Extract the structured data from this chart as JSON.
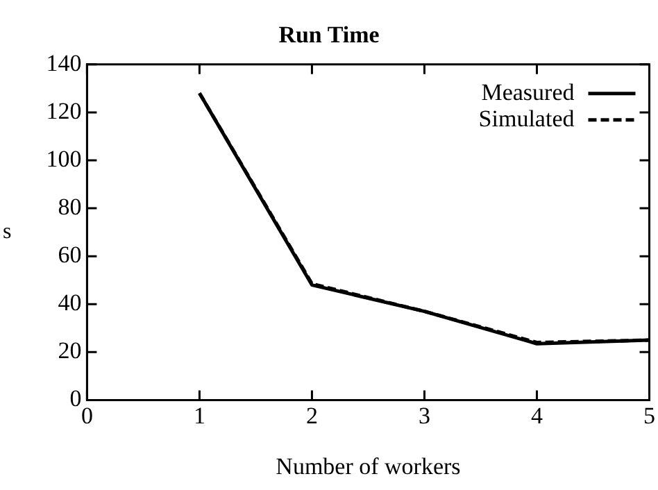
{
  "chart_data": {
    "type": "line",
    "title": "Run Time",
    "xlabel": "Number of workers",
    "ylabel": "s",
    "x": [
      1,
      2,
      3,
      4,
      5
    ],
    "series": [
      {
        "name": "Measured",
        "color": "#000000",
        "values": [
          128,
          48,
          37,
          23.5,
          25
        ],
        "line_style": "solid"
      },
      {
        "name": "Simulated",
        "color": "#000000",
        "values": [
          128,
          48.5,
          37,
          24,
          25
        ],
        "line_style": "dashed"
      }
    ],
    "xlim": [
      0,
      5
    ],
    "xticks": [
      0,
      1,
      2,
      3,
      4,
      5
    ],
    "ylim": [
      0,
      140
    ],
    "yticks": [
      0,
      20,
      40,
      60,
      80,
      100,
      120,
      140
    ],
    "grid": false,
    "legend": "top right",
    "marker": "none"
  }
}
